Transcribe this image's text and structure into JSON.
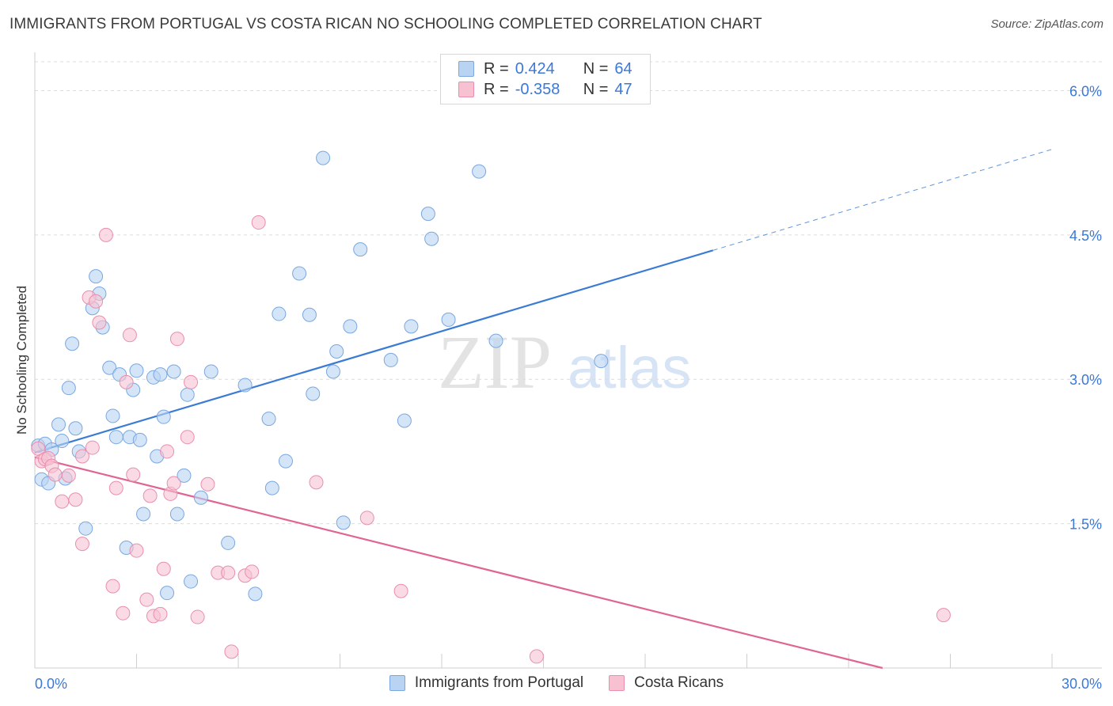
{
  "title": "IMMIGRANTS FROM PORTUGAL VS COSTA RICAN NO SCHOOLING COMPLETED CORRELATION CHART",
  "source": "Source: ZipAtlas.com",
  "watermark": {
    "zip": "ZIP",
    "atlas": "atlas"
  },
  "colors": {
    "blue_fill": "#b9d3f3",
    "blue_stroke": "#7aa7e0",
    "blue_line": "#3a7bd5",
    "pink_fill": "#f7c1d2",
    "pink_stroke": "#e98fae",
    "pink_line": "#e06592",
    "tick_text": "#3b78d8",
    "grid": "#dcdcdc"
  },
  "legend": {
    "rows": [
      {
        "r_label": "R =",
        "r_value": "0.424",
        "n_label": "N =",
        "n_value": "64"
      },
      {
        "r_label": "R =",
        "r_value": "-0.358",
        "n_label": "N =",
        "n_value": "47"
      }
    ]
  },
  "bottom_legend": [
    "Immigrants from Portugal",
    "Costa Ricans"
  ],
  "chart_data": {
    "type": "scatter",
    "title": "IMMIGRANTS FROM PORTUGAL VS COSTA RICAN NO SCHOOLING COMPLETED CORRELATION CHART",
    "xlabel": "",
    "ylabel": "No Schooling Completed",
    "xlim": [
      0,
      30
    ],
    "ylim": [
      0,
      6.3
    ],
    "x_tick_labels": [
      "0.0%",
      "30.0%"
    ],
    "y_ticks": [
      1.5,
      3.0,
      4.5,
      6.0
    ],
    "y_tick_labels": [
      "1.5%",
      "3.0%",
      "4.5%",
      "6.0%"
    ],
    "grid": true,
    "legend_position": "top-center",
    "series": [
      {
        "name": "Immigrants from Portugal",
        "color": "#b9d3f3",
        "r": 0.424,
        "n": 64,
        "trend": {
          "x": [
            0,
            20
          ],
          "y": [
            2.24,
            4.34
          ],
          "dashed_extension": {
            "x": [
              20,
              30
            ],
            "y": [
              4.34,
              5.39
            ]
          }
        },
        "points": [
          [
            0.1,
            2.31
          ],
          [
            0.2,
            1.96
          ],
          [
            0.3,
            2.33
          ],
          [
            0.4,
            1.92
          ],
          [
            0.5,
            2.27
          ],
          [
            0.7,
            2.53
          ],
          [
            0.8,
            2.36
          ],
          [
            0.9,
            1.97
          ],
          [
            1.0,
            2.91
          ],
          [
            1.1,
            3.37
          ],
          [
            1.2,
            2.49
          ],
          [
            1.3,
            2.25
          ],
          [
            1.5,
            1.45
          ],
          [
            1.7,
            3.74
          ],
          [
            1.8,
            4.07
          ],
          [
            1.9,
            3.89
          ],
          [
            2.0,
            3.54
          ],
          [
            2.2,
            3.12
          ],
          [
            2.3,
            2.62
          ],
          [
            2.4,
            2.4
          ],
          [
            2.5,
            3.05
          ],
          [
            2.7,
            1.25
          ],
          [
            2.8,
            2.4
          ],
          [
            2.9,
            2.89
          ],
          [
            3.0,
            3.09
          ],
          [
            3.1,
            2.37
          ],
          [
            3.2,
            1.6
          ],
          [
            3.5,
            3.02
          ],
          [
            3.6,
            2.2
          ],
          [
            3.7,
            3.05
          ],
          [
            3.8,
            2.61
          ],
          [
            3.9,
            0.78
          ],
          [
            4.1,
            3.08
          ],
          [
            4.2,
            1.6
          ],
          [
            4.4,
            2.0
          ],
          [
            4.5,
            2.84
          ],
          [
            4.6,
            0.9
          ],
          [
            4.9,
            1.77
          ],
          [
            5.2,
            3.08
          ],
          [
            5.7,
            1.3
          ],
          [
            6.2,
            2.94
          ],
          [
            6.5,
            0.77
          ],
          [
            6.9,
            2.59
          ],
          [
            7.0,
            1.87
          ],
          [
            7.2,
            3.68
          ],
          [
            7.4,
            2.15
          ],
          [
            7.8,
            4.1
          ],
          [
            8.1,
            3.67
          ],
          [
            8.2,
            2.85
          ],
          [
            8.5,
            5.3
          ],
          [
            8.8,
            3.08
          ],
          [
            8.9,
            3.29
          ],
          [
            9.1,
            1.51
          ],
          [
            9.3,
            3.55
          ],
          [
            9.6,
            4.35
          ],
          [
            10.5,
            3.2
          ],
          [
            10.9,
            2.57
          ],
          [
            11.1,
            3.55
          ],
          [
            11.6,
            4.72
          ],
          [
            11.7,
            4.46
          ],
          [
            12.2,
            3.62
          ],
          [
            13.1,
            5.16
          ],
          [
            13.6,
            3.4
          ],
          [
            16.7,
            3.19
          ]
        ]
      },
      {
        "name": "Costa Ricans",
        "color": "#f7c1d2",
        "r": -0.358,
        "n": 47,
        "trend": {
          "x": [
            0,
            25
          ],
          "y": [
            2.19,
            0.0
          ]
        },
        "points": [
          [
            0.1,
            2.28
          ],
          [
            0.2,
            2.15
          ],
          [
            0.3,
            2.17
          ],
          [
            0.4,
            2.18
          ],
          [
            0.5,
            2.1
          ],
          [
            0.6,
            2.01
          ],
          [
            0.8,
            1.73
          ],
          [
            1.0,
            2.0
          ],
          [
            1.2,
            1.75
          ],
          [
            1.4,
            2.2
          ],
          [
            1.4,
            1.29
          ],
          [
            1.6,
            3.85
          ],
          [
            1.7,
            2.29
          ],
          [
            1.8,
            3.81
          ],
          [
            1.9,
            3.59
          ],
          [
            2.1,
            4.5
          ],
          [
            2.3,
            0.85
          ],
          [
            2.4,
            1.87
          ],
          [
            2.6,
            0.57
          ],
          [
            2.7,
            2.97
          ],
          [
            2.8,
            3.46
          ],
          [
            2.9,
            2.01
          ],
          [
            3.0,
            1.22
          ],
          [
            3.3,
            0.71
          ],
          [
            3.4,
            1.79
          ],
          [
            3.5,
            0.54
          ],
          [
            3.7,
            0.56
          ],
          [
            3.8,
            1.03
          ],
          [
            3.9,
            2.25
          ],
          [
            4.0,
            1.81
          ],
          [
            4.1,
            1.92
          ],
          [
            4.2,
            3.42
          ],
          [
            4.5,
            2.4
          ],
          [
            4.6,
            2.97
          ],
          [
            4.8,
            0.53
          ],
          [
            5.1,
            1.91
          ],
          [
            5.4,
            0.99
          ],
          [
            5.7,
            0.99
          ],
          [
            5.8,
            0.17
          ],
          [
            6.2,
            0.96
          ],
          [
            6.4,
            1.0
          ],
          [
            6.6,
            4.63
          ],
          [
            8.3,
            1.93
          ],
          [
            9.8,
            1.56
          ],
          [
            10.8,
            0.8
          ],
          [
            14.8,
            0.12
          ],
          [
            26.8,
            0.55
          ]
        ]
      }
    ]
  }
}
